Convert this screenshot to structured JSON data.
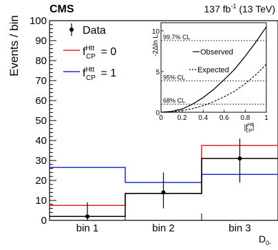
{
  "chart_data": [
    {
      "type": "histogram",
      "experiment": "CMS",
      "lumi_main": "137 fb",
      "lumi_sup": "-1",
      "lumi_tail": " (13 TeV)",
      "ylabel": "Events / bin",
      "xlabel_main": "D",
      "xlabel_sub": "0-",
      "ylim": [
        0,
        100
      ],
      "yticks": [
        0,
        10,
        20,
        30,
        40,
        50,
        60,
        70,
        80,
        90,
        100
      ],
      "categories": [
        "bin 1",
        "bin 2",
        "bin 3"
      ],
      "legend": {
        "data_label": "Data",
        "fcp0": {
          "base": "f",
          "sup": "Htt",
          "sub": "CP",
          "value": " = 0"
        },
        "fcp1": {
          "base": "f",
          "sup": "Htt",
          "sub": "CP",
          "value": " = 1"
        }
      },
      "series": [
        {
          "key": "fcp0",
          "color": "#e8232a",
          "values": [
            7.5,
            13.5,
            37.5
          ]
        },
        {
          "key": "fcp1",
          "color": "#1f2bd4",
          "values": [
            26.5,
            19.0,
            23.0
          ]
        }
      ],
      "data": {
        "values": [
          2,
          14,
          31
        ],
        "err_low": [
          2,
          8,
          12
        ],
        "err_high": [
          7,
          10,
          10
        ],
        "black_hist": [
          2,
          13.5,
          31
        ]
      }
    },
    {
      "type": "line",
      "ylabel": "-2Δln L",
      "xlabel": {
        "base": "|f",
        "sup": "Htt",
        "sub": "CP",
        "tail": "|"
      },
      "xlim": [
        0,
        1
      ],
      "ylim": [
        0,
        11
      ],
      "xticks": [
        "0",
        "0.2",
        "0.4",
        "0.6",
        "0.8",
        "1"
      ],
      "yticks": [
        "0",
        "5",
        "10"
      ],
      "legend": {
        "observed": "Observed",
        "expected": "Expected"
      },
      "cl_lines": [
        {
          "label": "99.7% CL",
          "y": 8.8
        },
        {
          "label": "95% CL",
          "y": 3.84
        },
        {
          "label": "68% CL",
          "y": 1.0
        }
      ],
      "observed": {
        "x": [
          0,
          0.1,
          0.2,
          0.3,
          0.4,
          0.5,
          0.6,
          0.7,
          0.8,
          0.9,
          1.0
        ],
        "y": [
          0,
          0.1,
          0.4,
          1.0,
          1.8,
          2.8,
          4.0,
          5.3,
          6.9,
          8.6,
          10.5
        ]
      },
      "expected": {
        "x": [
          0,
          0.1,
          0.2,
          0.3,
          0.4,
          0.5,
          0.6,
          0.7,
          0.8,
          0.9,
          1.0
        ],
        "y": [
          0,
          0.05,
          0.2,
          0.45,
          0.8,
          1.3,
          1.9,
          2.6,
          3.5,
          4.6,
          5.9
        ]
      }
    }
  ]
}
